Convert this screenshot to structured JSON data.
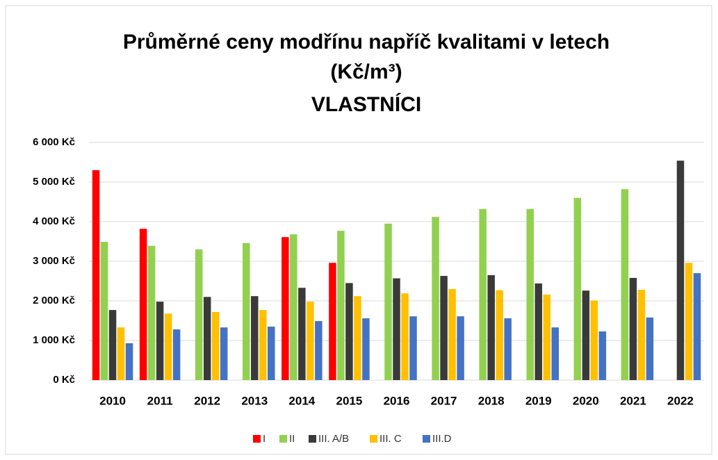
{
  "chart_data": {
    "type": "bar",
    "title": [
      "Průměrné ceny modřínu napříč kvalitami v letech",
      "(Kč/m³)",
      "VLASTNÍCI"
    ],
    "categories": [
      "2010",
      "2011",
      "2012",
      "2013",
      "2014",
      "2015",
      "2016",
      "2017",
      "2018",
      "2019",
      "2020",
      "2021",
      "2022"
    ],
    "series": [
      {
        "name": "I",
        "color": "#ff0000",
        "values": [
          5300,
          3820,
          null,
          null,
          3610,
          2960,
          null,
          null,
          null,
          null,
          null,
          null,
          null
        ]
      },
      {
        "name": "II",
        "color": "#92d050",
        "values": [
          3490,
          3390,
          3300,
          3460,
          3680,
          3770,
          3950,
          4120,
          4320,
          4320,
          4600,
          4820,
          null
        ]
      },
      {
        "name": "III. A/B",
        "color": "#3a3a3a",
        "values": [
          1770,
          1980,
          2100,
          2120,
          2330,
          2450,
          2570,
          2630,
          2650,
          2440,
          2260,
          2580,
          5540
        ]
      },
      {
        "name": "III. C",
        "color": "#ffc000",
        "values": [
          1330,
          1680,
          1720,
          1770,
          1980,
          2120,
          2190,
          2300,
          2270,
          2160,
          2010,
          2280,
          2960
        ]
      },
      {
        "name": "III.D",
        "color": "#4472c4",
        "values": [
          930,
          1280,
          1330,
          1350,
          1490,
          1560,
          1610,
          1610,
          1560,
          1330,
          1230,
          1580,
          2700
        ]
      }
    ],
    "ylim": [
      0,
      6000
    ],
    "yticks": [
      {
        "value": 0,
        "label": "0 Kč"
      },
      {
        "value": 1000,
        "label": "1 000 Kč"
      },
      {
        "value": 2000,
        "label": "2 000 Kč"
      },
      {
        "value": 3000,
        "label": "3 000 Kč"
      },
      {
        "value": 4000,
        "label": "4 000 Kč"
      },
      {
        "value": 5000,
        "label": "5 000 Kč"
      },
      {
        "value": 6000,
        "label": "6 000 Kč"
      }
    ],
    "grid": true
  }
}
